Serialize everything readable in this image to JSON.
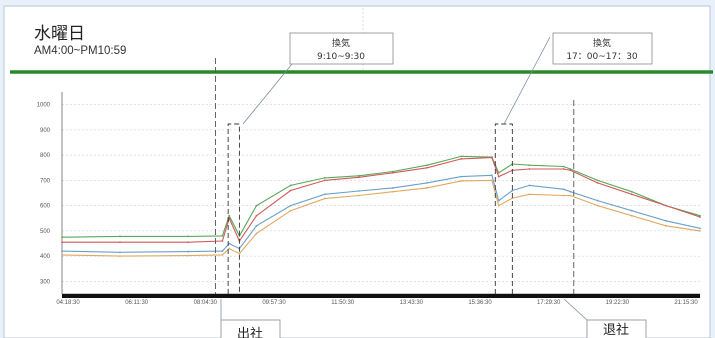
{
  "header": {
    "title": "水曜日",
    "subtitle": "AM4:00~PM10:59"
  },
  "annotations": {
    "vent1": {
      "title": "換気",
      "time": "9:10~9:30"
    },
    "vent2": {
      "title": "換気",
      "time": "17：00~17：30"
    },
    "arrive": "出社",
    "leave": "退社"
  },
  "colors": {
    "threshold": "#2a8a2a",
    "green": "#5aa85a",
    "red": "#d05a5a",
    "blue": "#6aa0cc",
    "orange": "#e0a860",
    "background": "#e8f0fa"
  },
  "chart_data": {
    "type": "line",
    "x_ticks": [
      "04:18:30",
      "06:11:30",
      "08:04:30",
      "09:57:30",
      "11:50:30",
      "13:43:30",
      "15:36:30",
      "17:29:30",
      "19:22:30",
      "21:15:30"
    ],
    "ylim": [
      250,
      1050
    ],
    "y_ticks": [
      300,
      400,
      500,
      600,
      700,
      800,
      900,
      1000
    ],
    "threshold": 1000,
    "x_hours": [
      4.3,
      6,
      8,
      9.0,
      9.2,
      9.5,
      10.0,
      11,
      12,
      13,
      14,
      15,
      16,
      16.9,
      17.1,
      17.5,
      18,
      19,
      19.2,
      20,
      21,
      22,
      23
    ],
    "series": [
      {
        "color_key": "green",
        "values": [
          475,
          478,
          478,
          480,
          560,
          480,
          600,
          680,
          710,
          718,
          735,
          760,
          795,
          792,
          730,
          765,
          760,
          755,
          745,
          700,
          655,
          600,
          560
        ]
      },
      {
        "color_key": "red",
        "values": [
          455,
          455,
          455,
          460,
          550,
          460,
          560,
          660,
          700,
          712,
          730,
          750,
          785,
          790,
          715,
          740,
          745,
          745,
          740,
          690,
          645,
          600,
          555
        ]
      },
      {
        "color_key": "blue",
        "values": [
          420,
          415,
          418,
          420,
          450,
          430,
          520,
          600,
          645,
          658,
          670,
          690,
          715,
          720,
          620,
          660,
          680,
          665,
          655,
          620,
          580,
          540,
          510
        ]
      },
      {
        "color_key": "orange",
        "values": [
          405,
          400,
          402,
          405,
          430,
          410,
          490,
          580,
          628,
          640,
          655,
          670,
          698,
          700,
          600,
          630,
          645,
          640,
          640,
          600,
          560,
          520,
          500
        ]
      }
    ],
    "events": {
      "arrive_time": 8.8,
      "leave_time": 19.3,
      "vent1_start": 9.17,
      "vent1_end": 9.5,
      "vent2_start": 17.0,
      "vent2_end": 17.5
    }
  }
}
